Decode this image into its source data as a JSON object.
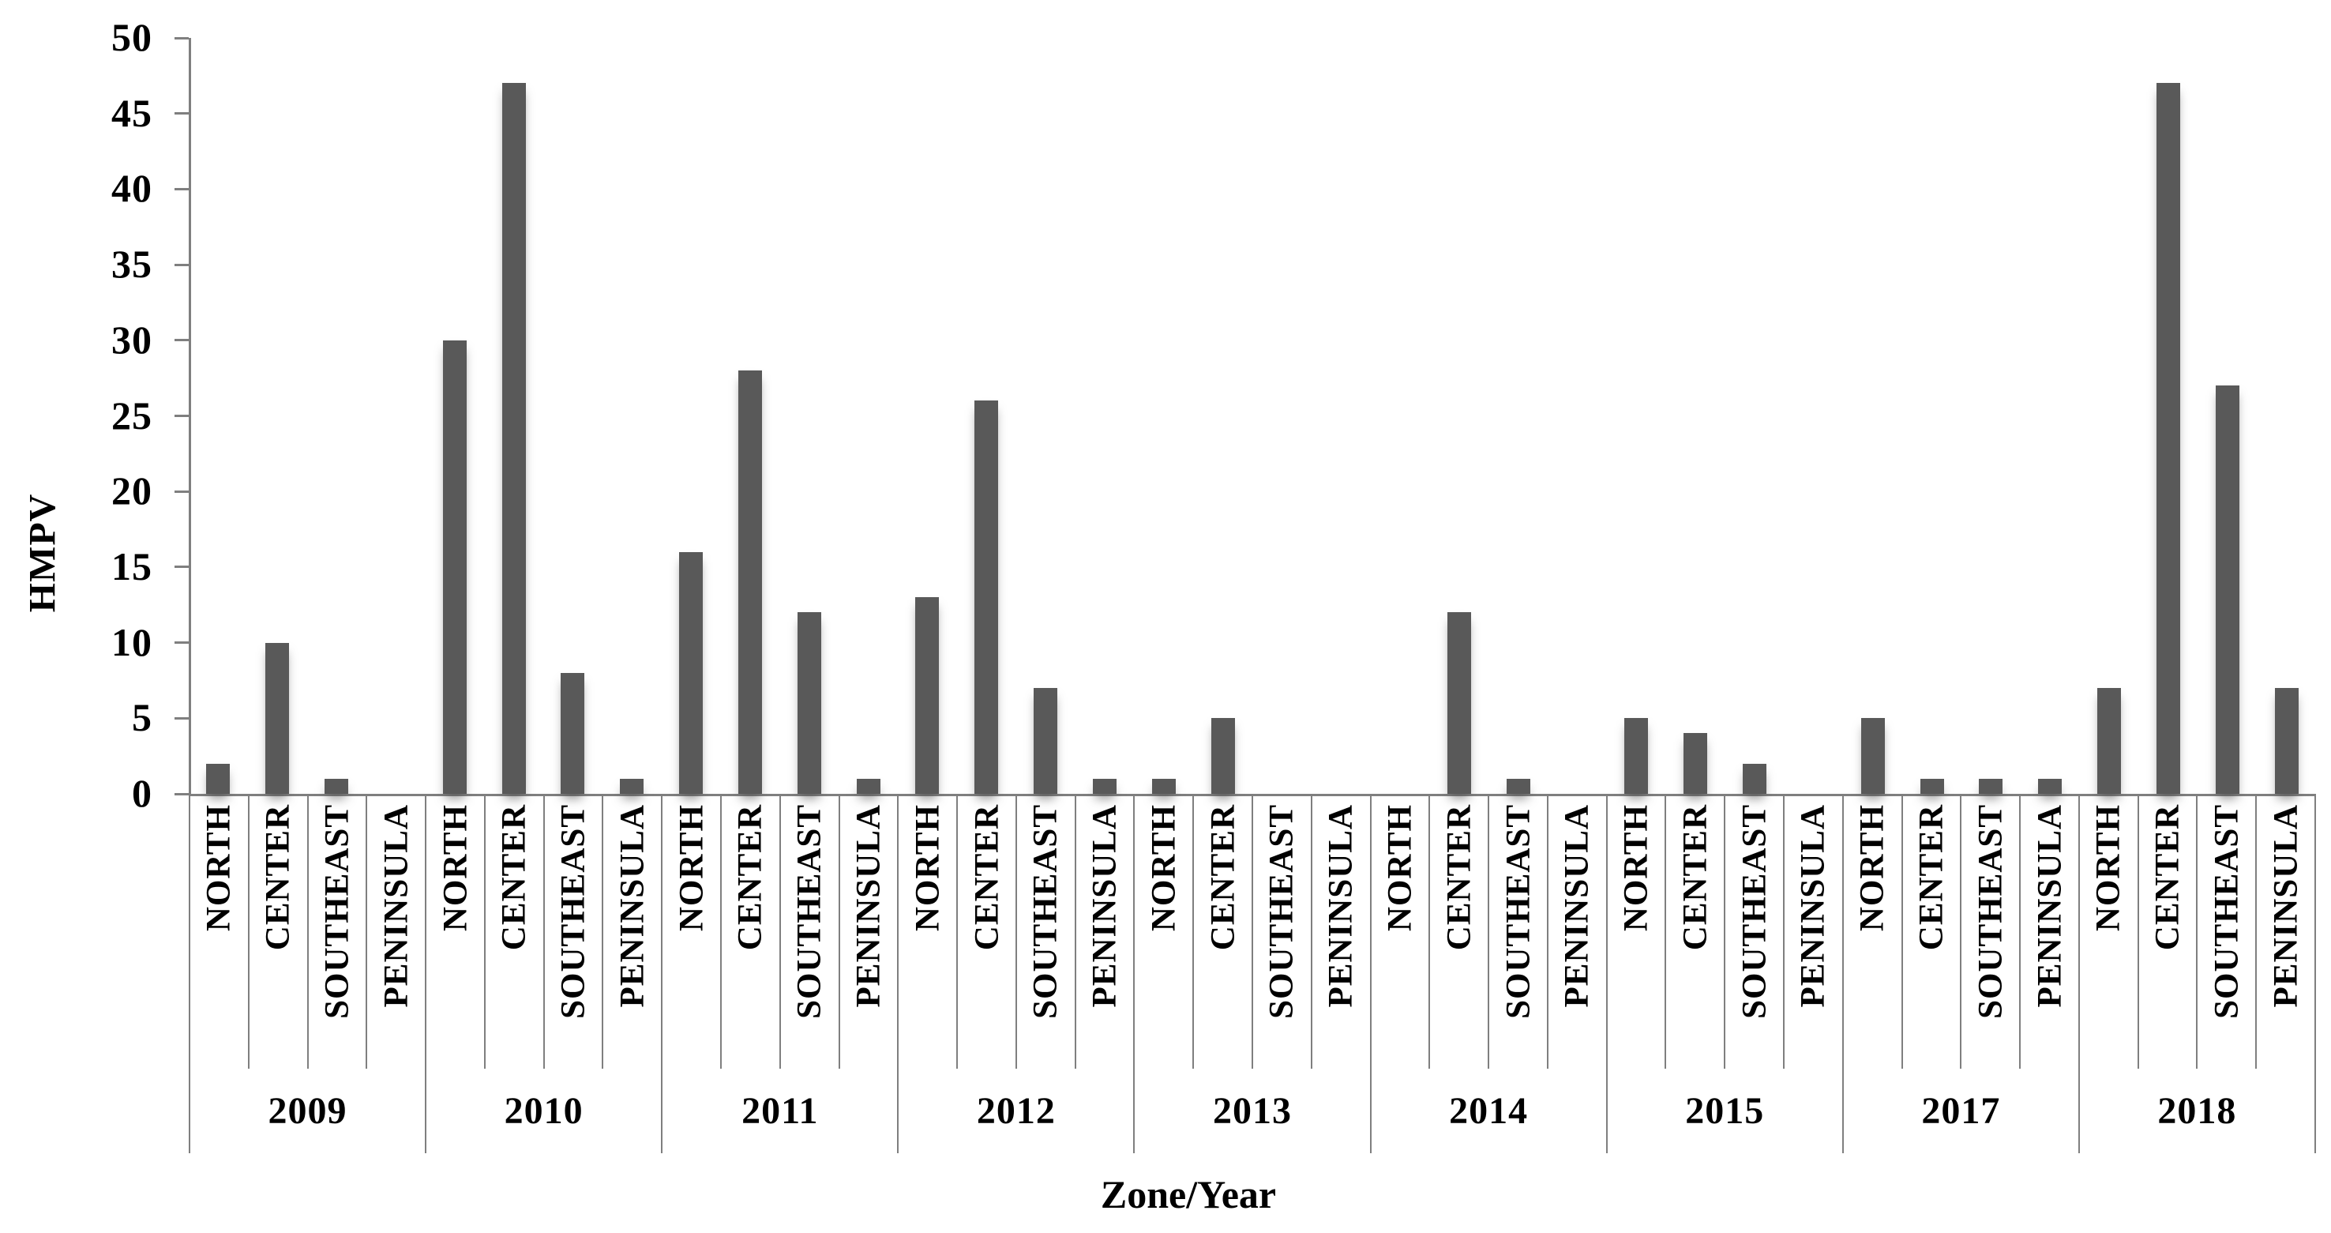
{
  "chart_data": {
    "type": "bar",
    "title": "",
    "ylabel": "HMPV",
    "xlabel": "Zone/Year",
    "ylim": [
      0,
      50
    ],
    "yticks": [
      0,
      5,
      10,
      15,
      20,
      25,
      30,
      35,
      40,
      45,
      50
    ],
    "zones": [
      "NORTH",
      "CENTER",
      "SOUTHEAST",
      "PENINSULA"
    ],
    "groups": [
      {
        "year": "2009",
        "values": [
          2,
          10,
          1,
          0
        ]
      },
      {
        "year": "2010",
        "values": [
          30,
          47,
          8,
          1
        ]
      },
      {
        "year": "2011",
        "values": [
          16,
          28,
          12,
          1
        ]
      },
      {
        "year": "2012",
        "values": [
          13,
          26,
          7,
          1
        ]
      },
      {
        "year": "2013",
        "values": [
          1,
          5,
          0,
          0
        ]
      },
      {
        "year": "2014",
        "values": [
          0,
          12,
          1,
          0
        ]
      },
      {
        "year": "2015",
        "values": [
          5,
          4,
          2,
          0
        ]
      },
      {
        "year": "2017",
        "values": [
          5,
          1,
          1,
          1
        ]
      },
      {
        "year": "2018",
        "values": [
          7,
          47,
          27,
          7
        ]
      }
    ],
    "bar_color": "#595959",
    "axis_color": "#7f7f7f",
    "text_color": "#000000",
    "grid": false,
    "legend": null
  }
}
